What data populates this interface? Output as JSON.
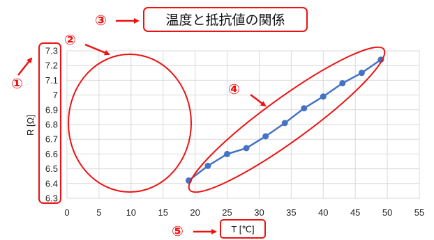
{
  "chart_data": {
    "type": "line",
    "title": "温度と抵抗値の関係",
    "xlabel": "T [℃]",
    "ylabel": "R [Ω]",
    "xlim": [
      0,
      55
    ],
    "ylim": [
      6.3,
      7.3
    ],
    "x_ticks": [
      "0",
      "5",
      "10",
      "15",
      "20",
      "25",
      "30",
      "35",
      "40",
      "45",
      "50",
      "55"
    ],
    "y_ticks": [
      "6.3",
      "6.4",
      "6.5",
      "6.6",
      "6.7",
      "6.8",
      "6.9",
      "7",
      "7.1",
      "7.2",
      "7.3"
    ],
    "grid": true,
    "series": [
      {
        "x": [
          19,
          22,
          25,
          28,
          31,
          34,
          37,
          40,
          43,
          46,
          49
        ],
        "y": [
          6.42,
          6.52,
          6.6,
          6.64,
          6.72,
          6.81,
          6.91,
          6.99,
          7.08,
          7.15,
          7.24
        ],
        "color": "#4472c4"
      }
    ],
    "annotation_color": "#ee1111",
    "annotations": {
      "callout_1": "①",
      "callout_2": "②",
      "callout_3": "③",
      "callout_4": "④",
      "callout_5": "⑤"
    }
  }
}
